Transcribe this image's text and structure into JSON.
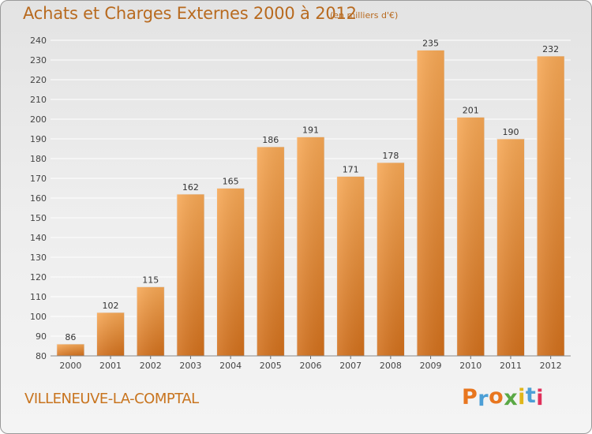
{
  "header": {
    "title": "Achats et Charges Externes 2000 à 2012",
    "unit": "(en milliers d'€)"
  },
  "footer": {
    "commune": "VILLENEUVE-LA-COMPTAL",
    "logo": "Proxiti"
  },
  "colors": {
    "bar_light": "#f7a855",
    "bar_dark": "#d2701c",
    "title": "#b86a1f",
    "gridline": "#ffffff",
    "logo": [
      "#e8761f",
      "#4c9fd6",
      "#e8761f",
      "#5aa845",
      "#e0b61a",
      "#4c9fd6",
      "#e0305a"
    ]
  },
  "chart_data": {
    "type": "bar",
    "title": "Achats et Charges Externes 2000 à 2012",
    "subtitle": "(en milliers d'€)",
    "categories": [
      "2000",
      "2001",
      "2002",
      "2003",
      "2004",
      "2005",
      "2006",
      "2007",
      "2008",
      "2009",
      "2010",
      "2011",
      "2012"
    ],
    "values": [
      86,
      102,
      115,
      162,
      165,
      186,
      191,
      171,
      178,
      235,
      201,
      190,
      232
    ],
    "ylim": [
      80,
      240
    ],
    "ytick_step": 10,
    "grid": true,
    "legend": "none"
  }
}
